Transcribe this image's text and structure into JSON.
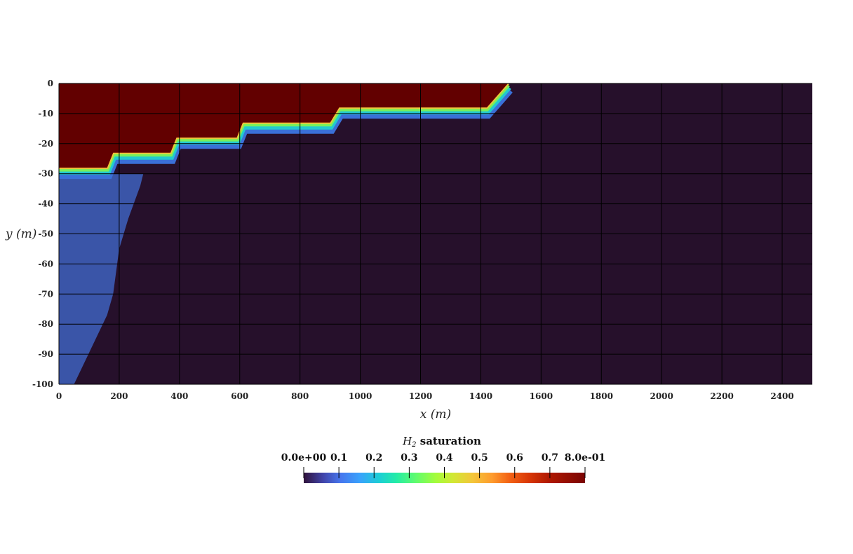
{
  "chart_data": {
    "type": "heatmap",
    "title": "",
    "xlabel": "x (m)",
    "ylabel": "y (m)",
    "xlim": [
      0,
      2500
    ],
    "ylim": [
      -100,
      0
    ],
    "x_ticks": [
      "0",
      "200",
      "400",
      "600",
      "800",
      "1000",
      "1200",
      "1400",
      "1600",
      "1800",
      "2000",
      "2200",
      "2400"
    ],
    "y_ticks": [
      "0",
      "-10",
      "-20",
      "-30",
      "-40",
      "-50",
      "-60",
      "-70",
      "-80",
      "-90",
      "-100"
    ],
    "grid": true,
    "colorbar": {
      "title_prefix": "H",
      "title_sub": "2",
      "title_rest": " saturation",
      "range": [
        0,
        0.8
      ],
      "ticks": [
        "0.0e+00",
        "0.1",
        "0.2",
        "0.3",
        "0.4",
        "0.5",
        "0.6",
        "0.7",
        "8.0e-01"
      ],
      "colormap": "turbo",
      "placement": "bottom-center"
    },
    "gas_plume": {
      "saturation": 0.8,
      "interface_front": [
        {
          "x": 0,
          "y": -28
        },
        {
          "x": 160,
          "y": -28
        },
        {
          "x": 180,
          "y": -23
        },
        {
          "x": 370,
          "y": -23
        },
        {
          "x": 390,
          "y": -18
        },
        {
          "x": 590,
          "y": -18
        },
        {
          "x": 610,
          "y": -13
        },
        {
          "x": 900,
          "y": -13
        },
        {
          "x": 930,
          "y": -8
        },
        {
          "x": 1420,
          "y": -8
        },
        {
          "x": 1490,
          "y": 0
        }
      ]
    },
    "water_zone": {
      "saturation": 0.1,
      "boundary": [
        {
          "x": 0,
          "y": -30
        },
        {
          "x": 280,
          "y": -30
        },
        {
          "x": 270,
          "y": -34
        },
        {
          "x": 230,
          "y": -45
        },
        {
          "x": 200,
          "y": -55
        },
        {
          "x": 180,
          "y": -70
        },
        {
          "x": 160,
          "y": -77
        },
        {
          "x": 50,
          "y": -100
        },
        {
          "x": 0,
          "y": -100
        }
      ]
    },
    "background_saturation": 0.0
  }
}
